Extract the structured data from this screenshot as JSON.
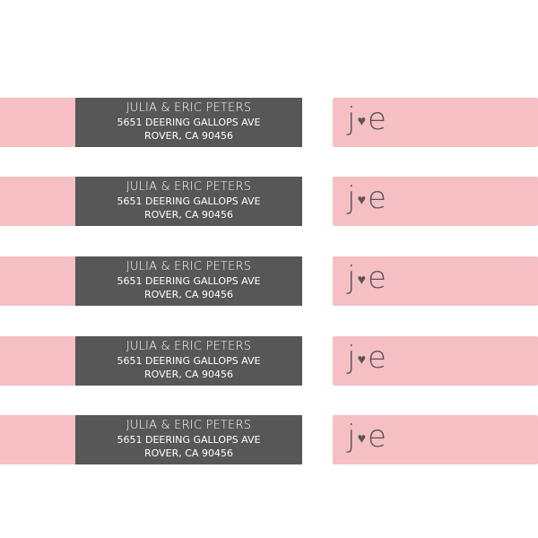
{
  "colors": {
    "pink": "#f5bfc3",
    "gray": "#575757"
  },
  "labels": [
    {
      "name": "JULIA & ERIC PETERS",
      "street": "5651 DEERING GALLOPS AVE",
      "city": "ROVER, CA 90456",
      "mono_left": "j",
      "mono_right": "e",
      "heart": "♥"
    },
    {
      "name": "JULIA & ERIC PETERS",
      "street": "5651 DEERING GALLOPS AVE",
      "city": "ROVER, CA 90456",
      "mono_left": "j",
      "mono_right": "e",
      "heart": "♥"
    },
    {
      "name": "JULIA & ERIC PETERS",
      "street": "5651 DEERING GALLOPS AVE",
      "city": "ROVER, CA 90456",
      "mono_left": "j",
      "mono_right": "e",
      "heart": "♥"
    },
    {
      "name": "JULIA & ERIC PETERS",
      "street": "5651 DEERING GALLOPS AVE",
      "city": "ROVER, CA 90456",
      "mono_left": "j",
      "mono_right": "e",
      "heart": "♥"
    },
    {
      "name": "JULIA & ERIC PETERS",
      "street": "5651 DEERING GALLOPS AVE",
      "city": "ROVER, CA 90456",
      "mono_left": "j",
      "mono_right": "e",
      "heart": "♥"
    }
  ]
}
